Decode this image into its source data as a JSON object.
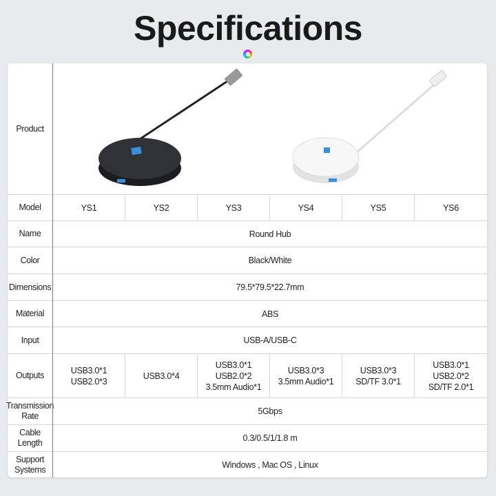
{
  "title": "Specifications",
  "table": {
    "product_label": "Product",
    "model_label": "Model",
    "models": [
      "YS1",
      "YS2",
      "YS3",
      "YS4",
      "YS5",
      "YS6"
    ],
    "rows": [
      {
        "label": "Name",
        "value": "Round Hub"
      },
      {
        "label": "Color",
        "value": "Black/White"
      },
      {
        "label": "Dimensions",
        "value": "79.5*79.5*22.7mm"
      },
      {
        "label": "Material",
        "value": "ABS"
      },
      {
        "label": "Input",
        "value": "USB-A/USB-C"
      }
    ],
    "outputs_label": "Outputs",
    "outputs": [
      "USB3.0*1\nUSB2.0*3",
      "USB3.0*4",
      "USB3.0*1\nUSB2.0*2\n3.5mm Audio*1",
      "USB3.0*3\n3.5mm Audio*1",
      "USB3.0*3\nSD/TF 3.0*1",
      "USB3.0*1\nUSB2.0*2\nSD/TF 2.0*1"
    ],
    "rows2": [
      {
        "label": "Transmission Rate",
        "value": "5Gbps"
      },
      {
        "label": "Cable Length",
        "value": "0.3/0.5/1/1.8 m"
      },
      {
        "label": "Support Systems",
        "value": "Windows , Mac OS , Linux"
      }
    ]
  },
  "products": [
    {
      "color": "black",
      "hex": "#2a2c30"
    },
    {
      "color": "white",
      "hex": "#f2f2f2"
    }
  ]
}
